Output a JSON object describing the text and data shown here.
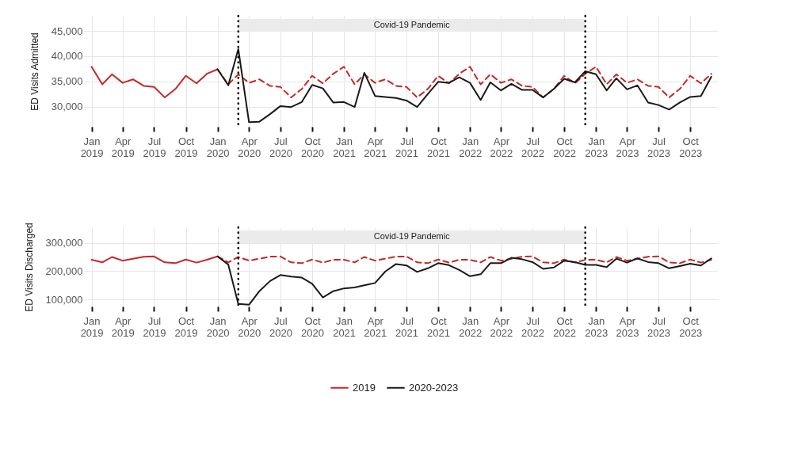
{
  "chart_data": [
    {
      "type": "line",
      "ylabel": "ED Visits Admitted",
      "xlim": [
        "2018-12-10",
        "2023-12-20"
      ],
      "xticks": [
        {
          "value": "2019-01",
          "label": "Jan 2019"
        },
        {
          "value": "2019-04",
          "label": "Apr 2019"
        },
        {
          "value": "2019-07",
          "label": "Jul 2019"
        },
        {
          "value": "2019-10",
          "label": "Oct 2019"
        },
        {
          "value": "2020-01",
          "label": "Jan 2020"
        },
        {
          "value": "2020-04",
          "label": "Apr 2020"
        },
        {
          "value": "2020-07",
          "label": "Jul 2020"
        },
        {
          "value": "2020-10",
          "label": "Oct 2020"
        },
        {
          "value": "2021-01",
          "label": "Jan 2021"
        },
        {
          "value": "2021-04",
          "label": "Apr 2021"
        },
        {
          "value": "2021-07",
          "label": "Jul 2021"
        },
        {
          "value": "2021-10",
          "label": "Oct 2021"
        },
        {
          "value": "2022-01",
          "label": "Jan 2022"
        },
        {
          "value": "2022-04",
          "label": "Apr 2022"
        },
        {
          "value": "2022-07",
          "label": "Jul 2022"
        },
        {
          "value": "2022-10",
          "label": "Oct 2022"
        },
        {
          "value": "2023-01",
          "label": "Jan 2023"
        },
        {
          "value": "2023-04",
          "label": "Apr 2023"
        },
        {
          "value": "2023-07",
          "label": "Jul 2023"
        },
        {
          "value": "2023-10",
          "label": "Oct 2023"
        }
      ],
      "ylim": [
        26000,
        48000
      ],
      "yticks": [
        {
          "value": 30000,
          "label": "30,000"
        },
        {
          "value": 35000,
          "label": "35,000"
        },
        {
          "value": 40000,
          "label": "40,000"
        },
        {
          "value": 45000,
          "label": "45,000"
        }
      ],
      "grid": true,
      "ref_lines": [
        {
          "axis": "x",
          "value": "2020-03",
          "color": "#000000",
          "line_style": "dotted"
        },
        {
          "axis": "x",
          "value": "2022-12",
          "color": "#000000",
          "line_style": "dotted"
        }
      ],
      "bands": [
        {
          "axis": "x",
          "from": "2020-03",
          "to": "2022-12",
          "label": "Covid-19 Pandemic",
          "color": "#ebebeb"
        }
      ],
      "series": [
        {
          "color": "#c62828",
          "x": [
            "2019-01",
            "2019-02",
            "2019-03",
            "2019-04",
            "2019-05",
            "2019-06",
            "2019-07",
            "2019-08",
            "2019-09",
            "2019-10",
            "2019-11",
            "2019-12",
            "2020-01"
          ],
          "values": [
            37900,
            34400,
            36400,
            34700,
            35400,
            34100,
            33900,
            31800,
            33500,
            36100,
            34600,
            36500,
            37400
          ]
        },
        {
          "color": "#c62828",
          "line_style": "dashed",
          "x": [
            "2020-01",
            "2020-02",
            "2020-03",
            "2020-04",
            "2020-05",
            "2020-06",
            "2020-07",
            "2020-08",
            "2020-09",
            "2020-10",
            "2020-11",
            "2020-12",
            "2021-01",
            "2021-02",
            "2021-03",
            "2021-04",
            "2021-05",
            "2021-06",
            "2021-07",
            "2021-08",
            "2021-09",
            "2021-10",
            "2021-11",
            "2021-12",
            "2022-01",
            "2022-02",
            "2022-03",
            "2022-04",
            "2022-05",
            "2022-06",
            "2022-07",
            "2022-08",
            "2022-09",
            "2022-10",
            "2022-11",
            "2022-12",
            "2023-01",
            "2023-02",
            "2023-03",
            "2023-04",
            "2023-05",
            "2023-06",
            "2023-07",
            "2023-08",
            "2023-09",
            "2023-10",
            "2023-11",
            "2023-12"
          ],
          "values": [
            37400,
            34400,
            36400,
            34700,
            35400,
            34100,
            33900,
            31800,
            33500,
            36100,
            34600,
            36500,
            37900,
            34400,
            36400,
            34700,
            35400,
            34100,
            33900,
            31800,
            33500,
            36100,
            34600,
            36500,
            37900,
            34400,
            36400,
            34700,
            35400,
            34100,
            33900,
            31800,
            33500,
            36100,
            34600,
            36500,
            37900,
            34400,
            36400,
            34700,
            35400,
            34100,
            33900,
            31800,
            33500,
            36100,
            34600,
            36500
          ]
        },
        {
          "color": "#1a1a1a",
          "x": [
            "2020-01",
            "2020-02",
            "2020-03",
            "2020-04",
            "2020-05",
            "2020-06",
            "2020-07",
            "2020-08",
            "2020-09",
            "2020-10",
            "2020-11",
            "2020-12",
            "2021-01",
            "2021-02",
            "2021-03",
            "2021-04",
            "2021-05",
            "2021-06",
            "2021-07",
            "2021-08",
            "2021-09",
            "2021-10",
            "2021-11",
            "2021-12",
            "2022-01",
            "2022-02",
            "2022-03",
            "2022-04",
            "2022-05",
            "2022-06",
            "2022-07",
            "2022-08",
            "2022-09",
            "2022-10",
            "2022-11",
            "2022-12",
            "2023-01",
            "2023-02",
            "2023-03",
            "2023-04",
            "2023-05",
            "2023-06",
            "2023-07",
            "2023-08",
            "2023-09",
            "2023-10",
            "2023-11",
            "2023-12"
          ],
          "values": [
            37400,
            34200,
            41400,
            26900,
            27000,
            28500,
            30100,
            29900,
            30900,
            34300,
            33600,
            30800,
            30900,
            29900,
            36700,
            32100,
            31900,
            31700,
            31200,
            29900,
            32500,
            34900,
            34700,
            35800,
            34700,
            31300,
            34800,
            33200,
            34500,
            33300,
            33300,
            31800,
            33500,
            35500,
            34800,
            37000,
            36400,
            33200,
            35600,
            33400,
            34200,
            30800,
            30300,
            29400,
            30800,
            31900,
            32100,
            35900
          ]
        }
      ]
    },
    {
      "type": "line",
      "ylabel": "ED Visits Discharged",
      "xlim": [
        "2018-12-10",
        "2023-12-20"
      ],
      "xticks": [
        {
          "value": "2019-01",
          "label": "Jan 2019"
        },
        {
          "value": "2019-04",
          "label": "Apr 2019"
        },
        {
          "value": "2019-07",
          "label": "Jul 2019"
        },
        {
          "value": "2019-10",
          "label": "Oct 2019"
        },
        {
          "value": "2020-01",
          "label": "Jan 2020"
        },
        {
          "value": "2020-04",
          "label": "Apr 2020"
        },
        {
          "value": "2020-07",
          "label": "Jul 2020"
        },
        {
          "value": "2020-10",
          "label": "Oct 2020"
        },
        {
          "value": "2021-01",
          "label": "Jan 2021"
        },
        {
          "value": "2021-04",
          "label": "Apr 2021"
        },
        {
          "value": "2021-07",
          "label": "Jul 2021"
        },
        {
          "value": "2021-10",
          "label": "Oct 2021"
        },
        {
          "value": "2022-01",
          "label": "Jan 2022"
        },
        {
          "value": "2022-04",
          "label": "Apr 2022"
        },
        {
          "value": "2022-07",
          "label": "Jul 2022"
        },
        {
          "value": "2022-10",
          "label": "Oct 2022"
        },
        {
          "value": "2023-01",
          "label": "Jan 2023"
        },
        {
          "value": "2023-04",
          "label": "Apr 2023"
        },
        {
          "value": "2023-07",
          "label": "Jul 2023"
        },
        {
          "value": "2023-10",
          "label": "Oct 2023"
        }
      ],
      "ylim": [
        75000,
        355000
      ],
      "yticks": [
        {
          "value": 100000,
          "label": "100,000"
        },
        {
          "value": 200000,
          "label": "200,000"
        },
        {
          "value": 300000,
          "label": "300,000"
        }
      ],
      "grid": true,
      "legend": "bottom",
      "ref_lines": [
        {
          "axis": "x",
          "value": "2020-03",
          "color": "#000000",
          "line_style": "dotted"
        },
        {
          "axis": "x",
          "value": "2022-12",
          "color": "#000000",
          "line_style": "dotted"
        }
      ],
      "bands": [
        {
          "axis": "x",
          "from": "2020-03",
          "to": "2022-12",
          "label": "Covid-19 Pandemic",
          "color": "#ebebeb"
        }
      ],
      "series": [
        {
          "name": "2019",
          "color": "#c62828",
          "x": [
            "2019-01",
            "2019-02",
            "2019-03",
            "2019-04",
            "2019-05",
            "2019-06",
            "2019-07",
            "2019-08",
            "2019-09",
            "2019-10",
            "2019-11",
            "2019-12",
            "2020-01"
          ],
          "values": [
            240000,
            231000,
            250000,
            237000,
            244000,
            251000,
            252000,
            231000,
            228000,
            241000,
            230000,
            240000,
            252000
          ]
        },
        {
          "color": "#c62828",
          "line_style": "dashed",
          "x": [
            "2020-01",
            "2020-02",
            "2020-03",
            "2020-04",
            "2020-05",
            "2020-06",
            "2020-07",
            "2020-08",
            "2020-09",
            "2020-10",
            "2020-11",
            "2020-12",
            "2021-01",
            "2021-02",
            "2021-03",
            "2021-04",
            "2021-05",
            "2021-06",
            "2021-07",
            "2021-08",
            "2021-09",
            "2021-10",
            "2021-11",
            "2021-12",
            "2022-01",
            "2022-02",
            "2022-03",
            "2022-04",
            "2022-05",
            "2022-06",
            "2022-07",
            "2022-08",
            "2022-09",
            "2022-10",
            "2022-11",
            "2022-12",
            "2023-01",
            "2023-02",
            "2023-03",
            "2023-04",
            "2023-05",
            "2023-06",
            "2023-07",
            "2023-08",
            "2023-09",
            "2023-10",
            "2023-11",
            "2023-12"
          ],
          "values": [
            252000,
            231000,
            250000,
            237000,
            244000,
            251000,
            252000,
            231000,
            228000,
            241000,
            230000,
            240000,
            240000,
            231000,
            250000,
            237000,
            244000,
            251000,
            252000,
            231000,
            228000,
            241000,
            230000,
            240000,
            240000,
            231000,
            250000,
            237000,
            244000,
            251000,
            252000,
            231000,
            228000,
            241000,
            230000,
            240000,
            240000,
            231000,
            250000,
            237000,
            244000,
            251000,
            252000,
            231000,
            228000,
            241000,
            230000,
            240000
          ]
        },
        {
          "name": "2020-2023",
          "color": "#1a1a1a",
          "x": [
            "2020-01",
            "2020-02",
            "2020-03",
            "2020-04",
            "2020-05",
            "2020-06",
            "2020-07",
            "2020-08",
            "2020-09",
            "2020-10",
            "2020-11",
            "2020-12",
            "2021-01",
            "2021-02",
            "2021-03",
            "2021-04",
            "2021-05",
            "2021-06",
            "2021-07",
            "2021-08",
            "2021-09",
            "2021-10",
            "2021-11",
            "2021-12",
            "2022-01",
            "2022-02",
            "2022-03",
            "2022-04",
            "2022-05",
            "2022-06",
            "2022-07",
            "2022-08",
            "2022-09",
            "2022-10",
            "2022-11",
            "2022-12",
            "2023-01",
            "2023-02",
            "2023-03",
            "2023-04",
            "2023-05",
            "2023-06",
            "2023-07",
            "2023-08",
            "2023-09",
            "2023-10",
            "2023-11",
            "2023-12"
          ],
          "values": [
            252000,
            223000,
            84000,
            81000,
            129000,
            165000,
            186000,
            181000,
            177000,
            155000,
            107000,
            129000,
            139000,
            142000,
            150000,
            158000,
            199000,
            225000,
            220000,
            197000,
            210000,
            228000,
            221000,
            204000,
            182000,
            189000,
            228000,
            228000,
            247000,
            242000,
            232000,
            208000,
            213000,
            237000,
            232000,
            222000,
            222000,
            214000,
            244000,
            230000,
            245000,
            232000,
            228000,
            210000,
            218000,
            226000,
            220000,
            245000
          ]
        }
      ]
    }
  ]
}
